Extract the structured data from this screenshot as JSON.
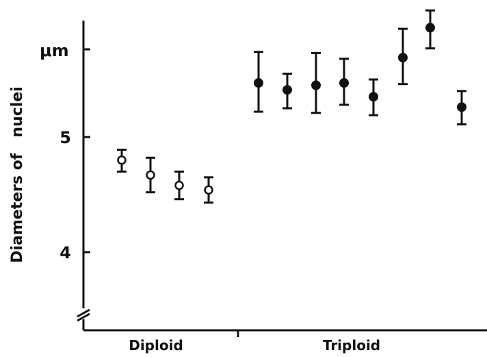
{
  "chart_data": {
    "type": "scatter",
    "title": "",
    "ylabel": "Diameters of   nuclei",
    "yunit": "μm",
    "ylim": [
      3.5,
      6.05
    ],
    "yticks": [
      4,
      5
    ],
    "y_axis_break": true,
    "groups": [
      {
        "name": "Diploid",
        "marker": "open-circle",
        "points": [
          {
            "y": 4.8,
            "lower": 4.7,
            "upper": 4.89
          },
          {
            "y": 4.67,
            "lower": 4.52,
            "upper": 4.82
          },
          {
            "y": 4.58,
            "lower": 4.46,
            "upper": 4.7
          },
          {
            "y": 4.54,
            "lower": 4.43,
            "upper": 4.65
          }
        ]
      },
      {
        "name": "Triploid",
        "marker": "filled-circle",
        "points": [
          {
            "y": 5.47,
            "lower": 5.22,
            "upper": 5.74
          },
          {
            "y": 5.41,
            "lower": 5.25,
            "upper": 5.55
          },
          {
            "y": 5.45,
            "lower": 5.21,
            "upper": 5.73
          },
          {
            "y": 5.47,
            "lower": 5.28,
            "upper": 5.68
          },
          {
            "y": 5.35,
            "lower": 5.19,
            "upper": 5.5
          },
          {
            "y": 5.69,
            "lower": 5.46,
            "upper": 5.94
          },
          {
            "y": 5.95,
            "lower": 5.77,
            "upper": 6.1
          },
          {
            "y": 5.26,
            "lower": 5.11,
            "upper": 5.4
          }
        ]
      }
    ]
  }
}
